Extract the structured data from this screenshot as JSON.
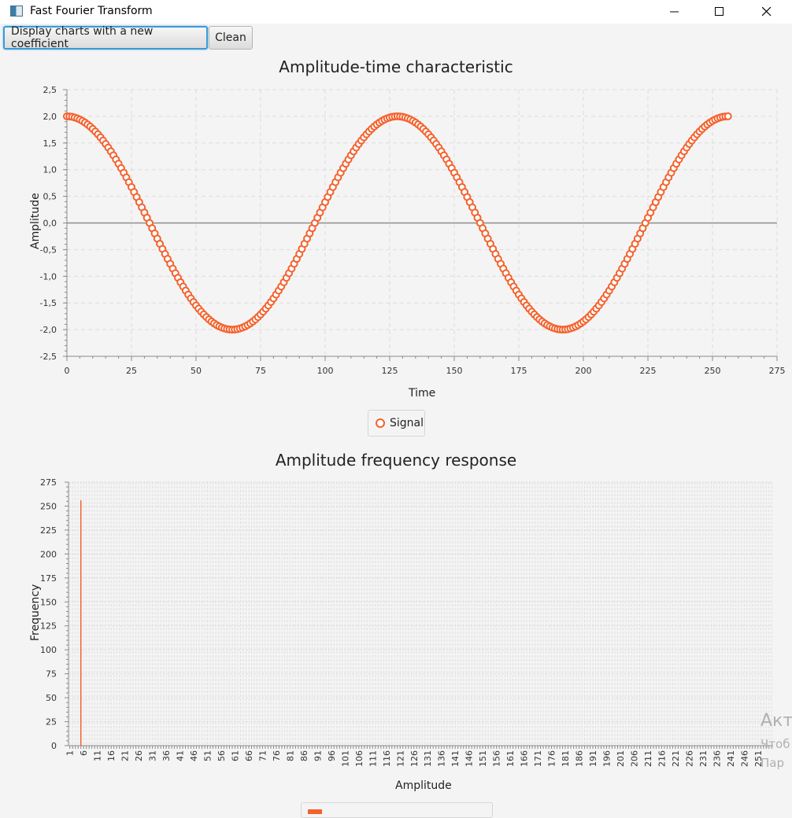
{
  "window": {
    "title": "Fast Fourier Transform",
    "controls": {
      "minimize": "minimize-icon",
      "maximize": "maximize-icon",
      "close": "close-icon"
    }
  },
  "toolbar": {
    "display_label": "Display charts with a new coefficient",
    "clean_label": "Clean"
  },
  "watermark": {
    "line1": "Акт",
    "line2": "Чтоб",
    "line3": "Пар"
  },
  "chart_data": [
    {
      "type": "scatter",
      "title": "Amplitude-time characteristic",
      "xlabel": "Time",
      "ylabel": "Amplitude",
      "xlim": [
        0,
        275
      ],
      "ylim": [
        -2.5,
        2.5
      ],
      "x_ticks": [
        "0",
        "25",
        "50",
        "75",
        "100",
        "125",
        "150",
        "175",
        "200",
        "225",
        "250",
        "275"
      ],
      "y_ticks": [
        "2,5",
        "2,0",
        "1,5",
        "1,0",
        "0,5",
        "0,0",
        "-0,5",
        "-1,0",
        "-1,5",
        "-2,0",
        "-2,5"
      ],
      "grid": true,
      "legend_position": "bottom-center",
      "color": "#f3622d",
      "series": [
        {
          "name": "Signal",
          "function": "2*cos(2*pi*x/128)",
          "x_start": 0,
          "x_end": 256,
          "x_step": 1
        }
      ]
    },
    {
      "type": "bar",
      "title": "Amplitude frequency response",
      "xlabel": "Amplitude",
      "ylabel": "Frequency",
      "ylim": [
        0,
        275
      ],
      "y_ticks": [
        "275",
        "250",
        "225",
        "200",
        "175",
        "150",
        "125",
        "100",
        "75",
        "50",
        "25",
        "0"
      ],
      "x_tick_labels": [
        "1",
        "6",
        "11",
        "16",
        "21",
        "26",
        "31",
        "36",
        "41",
        "46",
        "51",
        "56",
        "61",
        "66",
        "71",
        "76",
        "81",
        "86",
        "91",
        "96",
        "101",
        "106",
        "111",
        "116",
        "121",
        "126",
        "131",
        "136",
        "141",
        "146",
        "151",
        "156",
        "161",
        "166",
        "171",
        "176",
        "181",
        "186",
        "191",
        "196",
        "201",
        "206",
        "211",
        "216",
        "221",
        "226",
        "231",
        "236",
        "241",
        "246",
        "251"
      ],
      "categories_from": 1,
      "categories_to": 256,
      "grid": true,
      "color": "#f3622d",
      "bars": [
        {
          "x": 5,
          "value": 256
        }
      ]
    }
  ]
}
